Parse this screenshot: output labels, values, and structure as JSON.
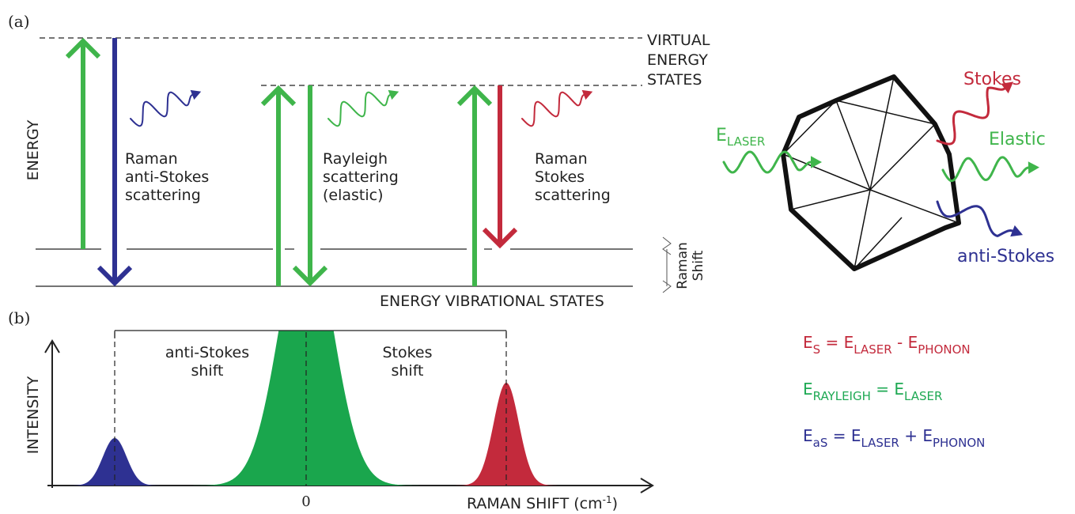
{
  "panel_a": {
    "label": "(a)",
    "virtual_states": [
      "VIRTUAL",
      "ENERGY",
      "STATES"
    ],
    "energy_axis": "ENERGY",
    "processes": [
      {
        "lines": [
          "Raman",
          "anti-Stokes",
          "scattering"
        ]
      },
      {
        "lines": [
          "Rayleigh",
          "scattering",
          "(elastic)"
        ]
      },
      {
        "lines": [
          "Raman",
          "Stokes",
          "scattering"
        ]
      }
    ],
    "raman_shift": [
      "Raman",
      "Shift"
    ],
    "vibrational_states": "ENERGY VIBRATIONAL STATES"
  },
  "particle": {
    "laser": {
      "base": "E",
      "sub": "LASER"
    },
    "stokes": "Stokes",
    "elastic": "Elastic",
    "anti_stokes": "anti-Stokes"
  },
  "equations": [
    {
      "color": "#c32a3c",
      "parts": [
        {
          "t": "E"
        },
        {
          "sub": "S"
        },
        {
          "t": " = E"
        },
        {
          "sub": "LASER"
        },
        {
          "t": " - E"
        },
        {
          "sub": "PHONON"
        }
      ]
    },
    {
      "color": "#1fa954",
      "parts": [
        {
          "t": "E"
        },
        {
          "sub": "RAYLEIGH"
        },
        {
          "t": " = E"
        },
        {
          "sub": "LASER"
        }
      ]
    },
    {
      "color": "#2e3192",
      "parts": [
        {
          "t": "E"
        },
        {
          "sub": "aS"
        },
        {
          "t": " = E"
        },
        {
          "sub": "LASER"
        },
        {
          "t": " + E"
        },
        {
          "sub": "PHONON"
        }
      ]
    }
  ],
  "panel_b": {
    "label": "(b)",
    "y_axis": "INTENSITY",
    "anti_stokes_shift": [
      "anti-Stokes",
      "shift"
    ],
    "stokes_shift": [
      "Stokes",
      "shift"
    ],
    "zero": "0",
    "x_axis": {
      "text": "RAMAN SHIFT (cm",
      "sup": "-1",
      "close": ")"
    }
  }
}
